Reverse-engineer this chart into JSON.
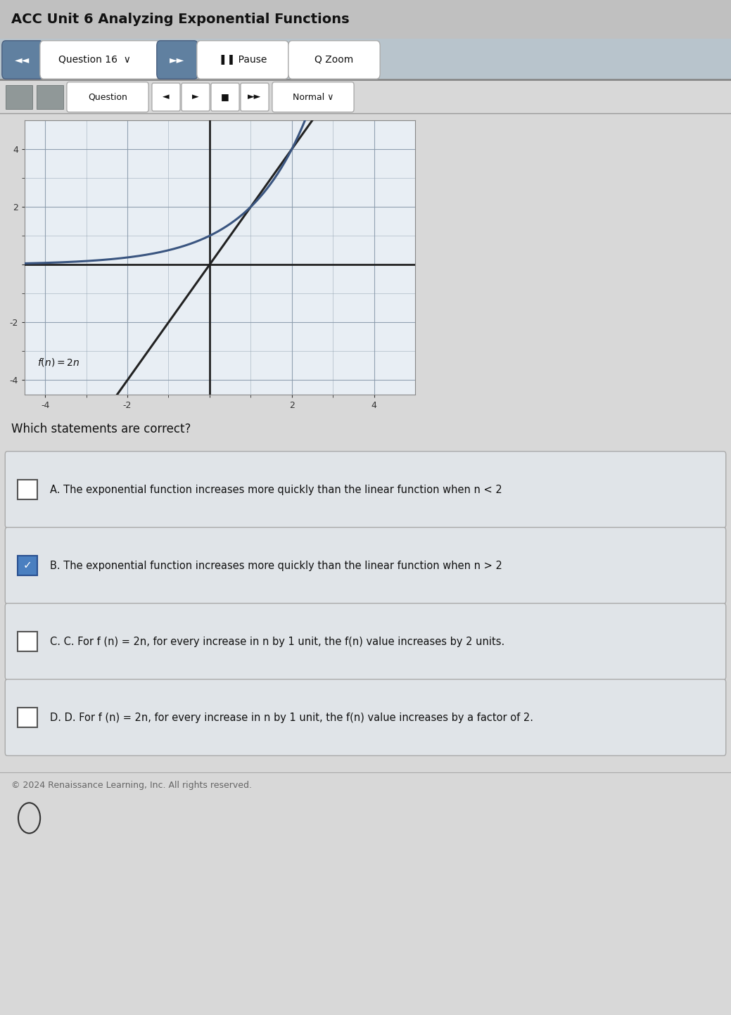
{
  "title": "ACC Unit 6 Analyzing Exponential Functions",
  "question_num": "Question 16",
  "graph_xlim": [
    -4.5,
    5.0
  ],
  "graph_ylim": [
    -4.5,
    5.0
  ],
  "graph_xticks": [
    -4,
    -2,
    0,
    2,
    4
  ],
  "graph_yticks": [
    -4,
    -2,
    0,
    2,
    4
  ],
  "linear_label": "f(n) = 2n",
  "question_text": "Which statements are correct?",
  "options": [
    {
      "letter": "A",
      "text": "The exponential function increases more quickly than the linear function when n < 2",
      "checked": false
    },
    {
      "letter": "B",
      "text": "The exponential function increases more quickly than the linear function when n > 2",
      "checked": true
    },
    {
      "letter": "C",
      "text": "C. For f (n) = 2n, for every increase in n by 1 unit, the f(n) value increases by 2 units.",
      "checked": false
    },
    {
      "letter": "D",
      "text": "D. For f (n) = 2n, for every increase in n by 1 unit, the f(n) value increases by a factor of 2.",
      "checked": false
    }
  ],
  "footer": "© 2024 Renaissance Learning, Inc. All rights reserved.",
  "bg_color": "#c8c8c8",
  "content_bg": "#d8d8d8",
  "graph_bg": "#e8eef4",
  "graph_grid_color": "#8899aa",
  "linear_color": "#222222",
  "expo_color": "#3a5580",
  "header_bg": "#c0c0c0",
  "toolbar1_bg": "#b8c4cc",
  "toolbar2_bg": "#d8d8d8",
  "option_bg": "#e0e4e8",
  "option_border": "#aaaaaa",
  "checkbox_unchecked_fill": "#ffffff",
  "checkbox_checked_fill": "#4a7fc0",
  "white": "#ffffff",
  "dark_text": "#111111",
  "mid_text": "#444444",
  "light_text": "#666666"
}
